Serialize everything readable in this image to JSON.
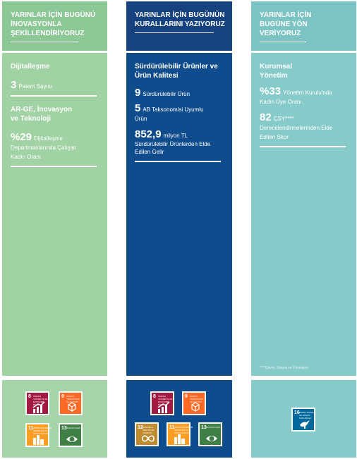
{
  "col1": {
    "header": "YARINLAR İÇİN BUGÜNÜ İNOVASYONLA ŞEKİLLENDİRİYORUZ",
    "section1": "Dijitalleşme",
    "stat1": {
      "value": "3",
      "label": "Patent Sayısı"
    },
    "section2": "AR-GE, İnovasyon ve Teknoloji",
    "stat2": {
      "value": "%29",
      "label": "Dijitalleşme Departmanlarında Çalışan Kadın Oranı"
    },
    "sdgs": [
      {
        "num": "8",
        "label": "İNSANA YAKIŞIR İŞ VE EKONOMİK BÜYÜME",
        "color": "#a21942",
        "icon": "growth-chart-icon"
      },
      {
        "num": "9",
        "label": "SANAYİ, YENİLİKÇİLİK VE ALTYAPI",
        "color": "#fd6925",
        "icon": "cubes-icon"
      },
      {
        "num": "11",
        "label": "SÜRDÜRÜLEBİLİR ŞEHİRLER VE TOPLULUKLAR",
        "color": "#fd9d24",
        "icon": "city-icon"
      },
      {
        "num": "13",
        "label": "İKLİM EYLEMİ",
        "color": "#3f7e44",
        "icon": "eye-globe-icon"
      }
    ]
  },
  "col2": {
    "header": "YARINLAR İÇİN BUGÜNÜN KURALLARINI YAZIYORUZ",
    "section1": "Sürdürülebilir Ürünler ve Ürün Kalitesi",
    "stat1": {
      "value": "9",
      "label": "Sürdürülebilir Ürün"
    },
    "stat2": {
      "value": "5",
      "label": "AB Taksonomisi Uyumlu  Ürün"
    },
    "stat3": {
      "value": "852,9",
      "unit": "milyon TL",
      "label": "Sürdürülebilir Ürünlerden Elde Edilen Gelir"
    },
    "sdgs": [
      {
        "num": "8",
        "label": "İNSANA YAKIŞIR İŞ VE EKONOMİK BÜYÜME",
        "color": "#a21942",
        "icon": "growth-chart-icon"
      },
      {
        "num": "9",
        "label": "SANAYİ, YENİLİKÇİLİK VE ALTYAPI",
        "color": "#fd6925",
        "icon": "cubes-icon"
      },
      {
        "num": "12",
        "label": "SORUMLU ÜRETİM VE TÜKETİM",
        "color": "#bf8b2e",
        "icon": "infinity-icon"
      },
      {
        "num": "11",
        "label": "SÜRDÜRÜLEBİLİR ŞEHİRLER VE TOPLULUKLAR",
        "color": "#fd9d24",
        "icon": "city-icon"
      },
      {
        "num": "13",
        "label": "İKLİM EYLEMİ",
        "color": "#3f7e44",
        "icon": "eye-globe-icon"
      }
    ]
  },
  "col3": {
    "header": "YARINLAR İÇİN BUGÜNE YÖN VERİYORUZ",
    "section1": "Kurumsal Yönetim",
    "stat1": {
      "value": "%33",
      "label": "Yönetim Kurulu'nda Kadın Üye Oranı"
    },
    "stat2": {
      "value": "82",
      "label": "ÇSY**** Derecelendirmelerinden Elde Edilen Skor"
    },
    "footnote": "****Çevre, Sosyal ve Yönetişim",
    "sdgs": [
      {
        "num": "16",
        "label": "BARIŞ, ADALET VE GÜÇLÜ KURUMLAR",
        "color": "#00689d",
        "icon": "dove-icon"
      }
    ]
  }
}
